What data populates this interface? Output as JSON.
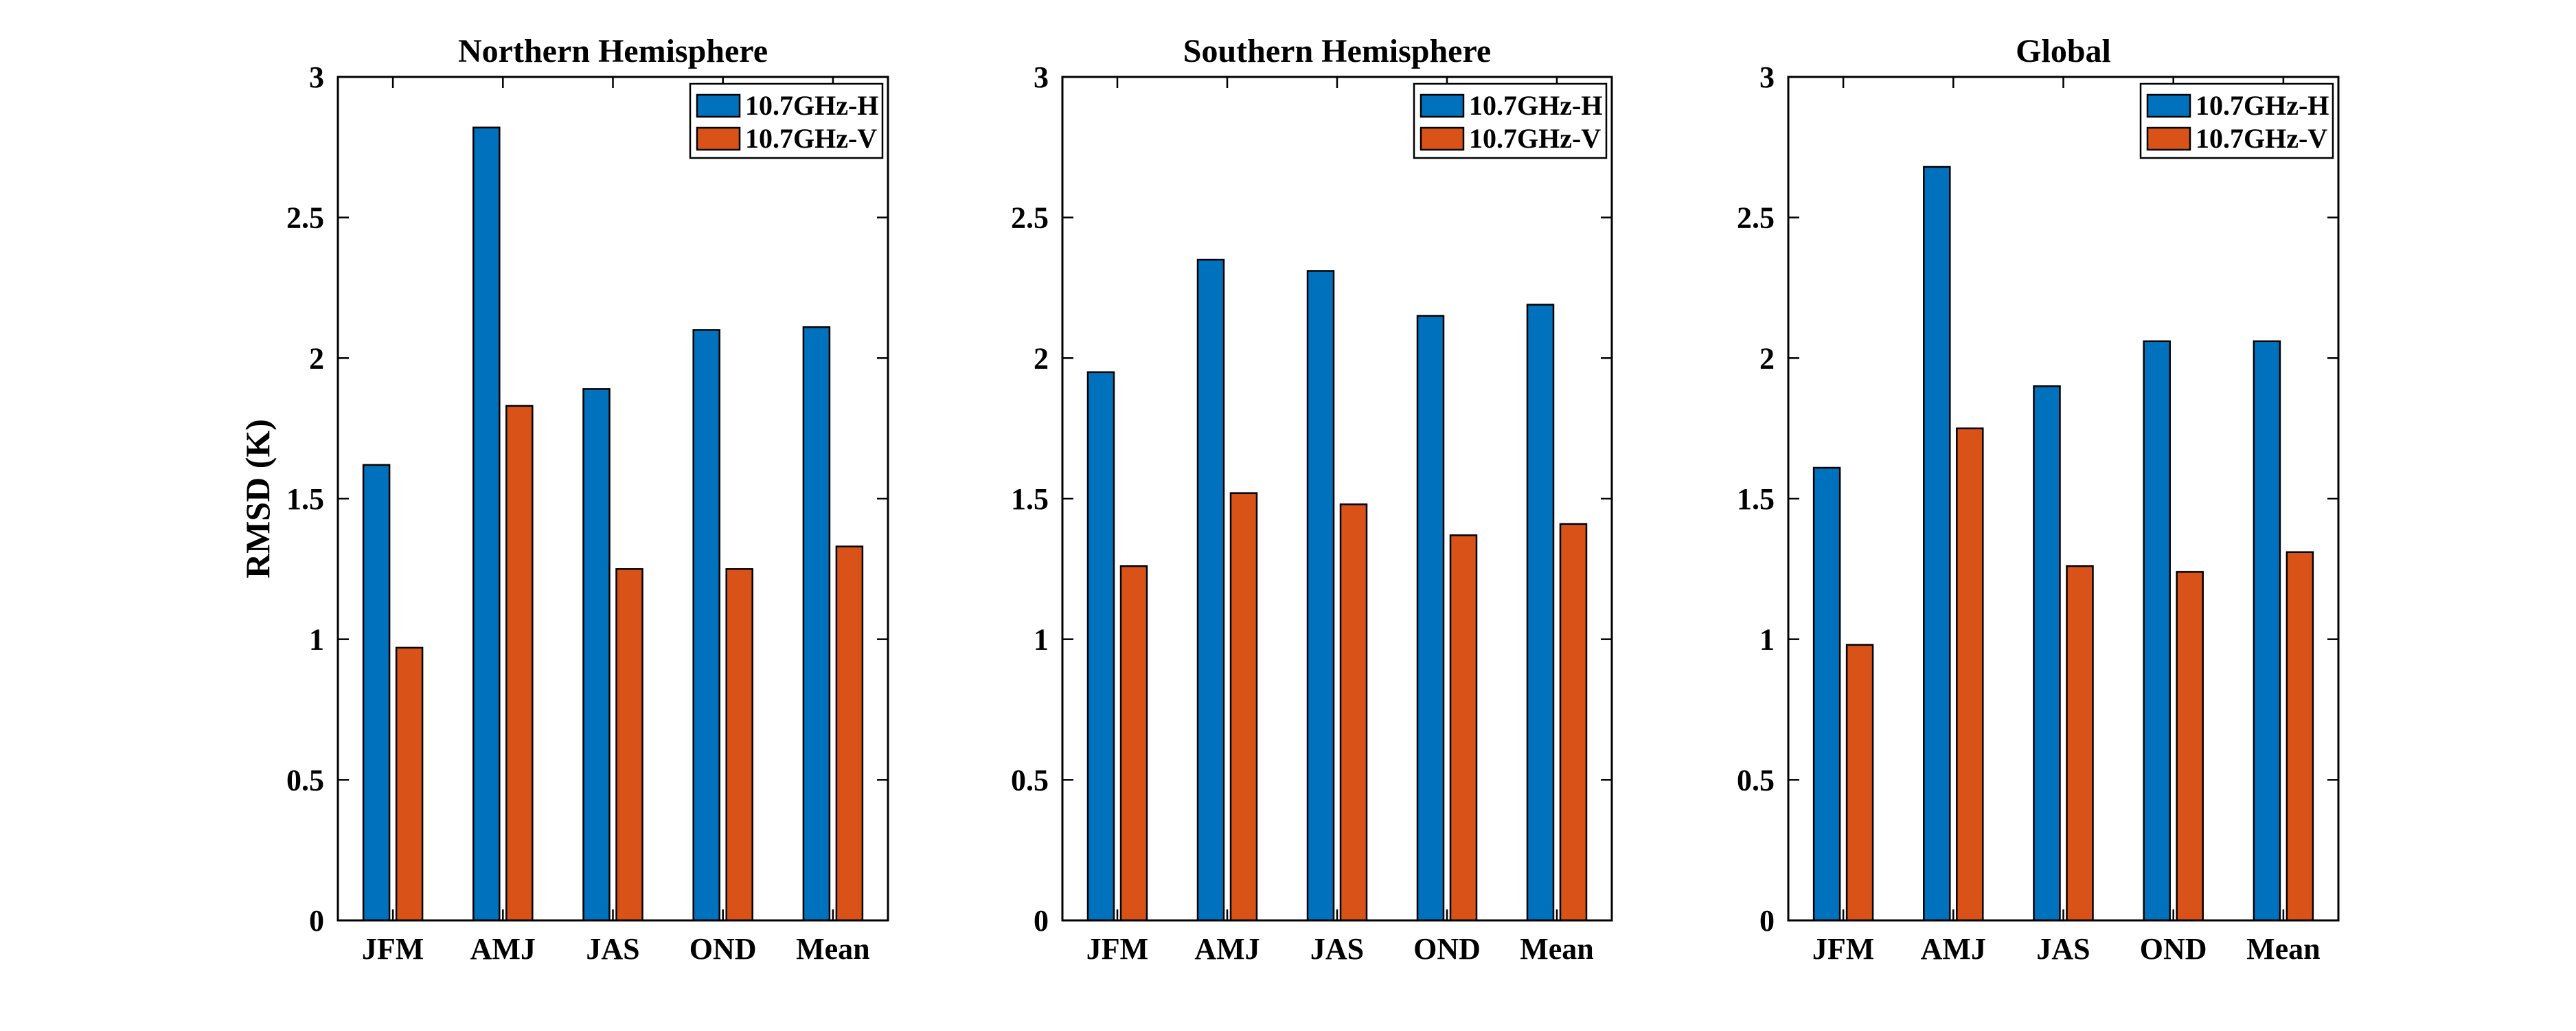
{
  "chart_data": [
    {
      "type": "bar",
      "title": "Northern Hemisphere",
      "categories": [
        "JFM",
        "AMJ",
        "JAS",
        "OND",
        "Mean"
      ],
      "series": [
        {
          "name": "10.7GHz-H",
          "values": [
            1.62,
            2.82,
            1.89,
            2.1,
            2.11
          ]
        },
        {
          "name": "10.7GHz-V",
          "values": [
            0.97,
            1.83,
            1.25,
            1.25,
            1.33
          ]
        }
      ],
      "ylabel": "RMSD (K)",
      "ylim": [
        0,
        3
      ],
      "yticks": [
        "0",
        "0.5",
        "1",
        "1.5",
        "2",
        "2.5",
        "3"
      ],
      "legend": "top-right",
      "grid": false
    },
    {
      "type": "bar",
      "title": "Southern Hemisphere",
      "categories": [
        "JFM",
        "AMJ",
        "JAS",
        "OND",
        "Mean"
      ],
      "series": [
        {
          "name": "10.7GHz-H",
          "values": [
            1.95,
            2.35,
            2.31,
            2.15,
            2.19
          ]
        },
        {
          "name": "10.7GHz-V",
          "values": [
            1.26,
            1.52,
            1.48,
            1.37,
            1.41
          ]
        }
      ],
      "ylabel": "",
      "ylim": [
        0,
        3
      ],
      "yticks": [
        "0",
        "0.5",
        "1",
        "1.5",
        "2",
        "2.5",
        "3"
      ],
      "legend": "top-right",
      "grid": false
    },
    {
      "type": "bar",
      "title": "Global",
      "categories": [
        "JFM",
        "AMJ",
        "JAS",
        "OND",
        "Mean"
      ],
      "series": [
        {
          "name": "10.7GHz-H",
          "values": [
            1.61,
            2.68,
            1.9,
            2.06,
            2.06
          ]
        },
        {
          "name": "10.7GHz-V",
          "values": [
            0.98,
            1.75,
            1.26,
            1.24,
            1.31
          ]
        }
      ],
      "ylabel": "",
      "ylim": [
        0,
        3
      ],
      "yticks": [
        "0",
        "0.5",
        "1",
        "1.5",
        "2",
        "2.5",
        "3"
      ],
      "legend": "top-right",
      "grid": false
    }
  ],
  "colors": {
    "10.7GHz-H": "#0072BD",
    "10.7GHz-V": "#D95319"
  }
}
